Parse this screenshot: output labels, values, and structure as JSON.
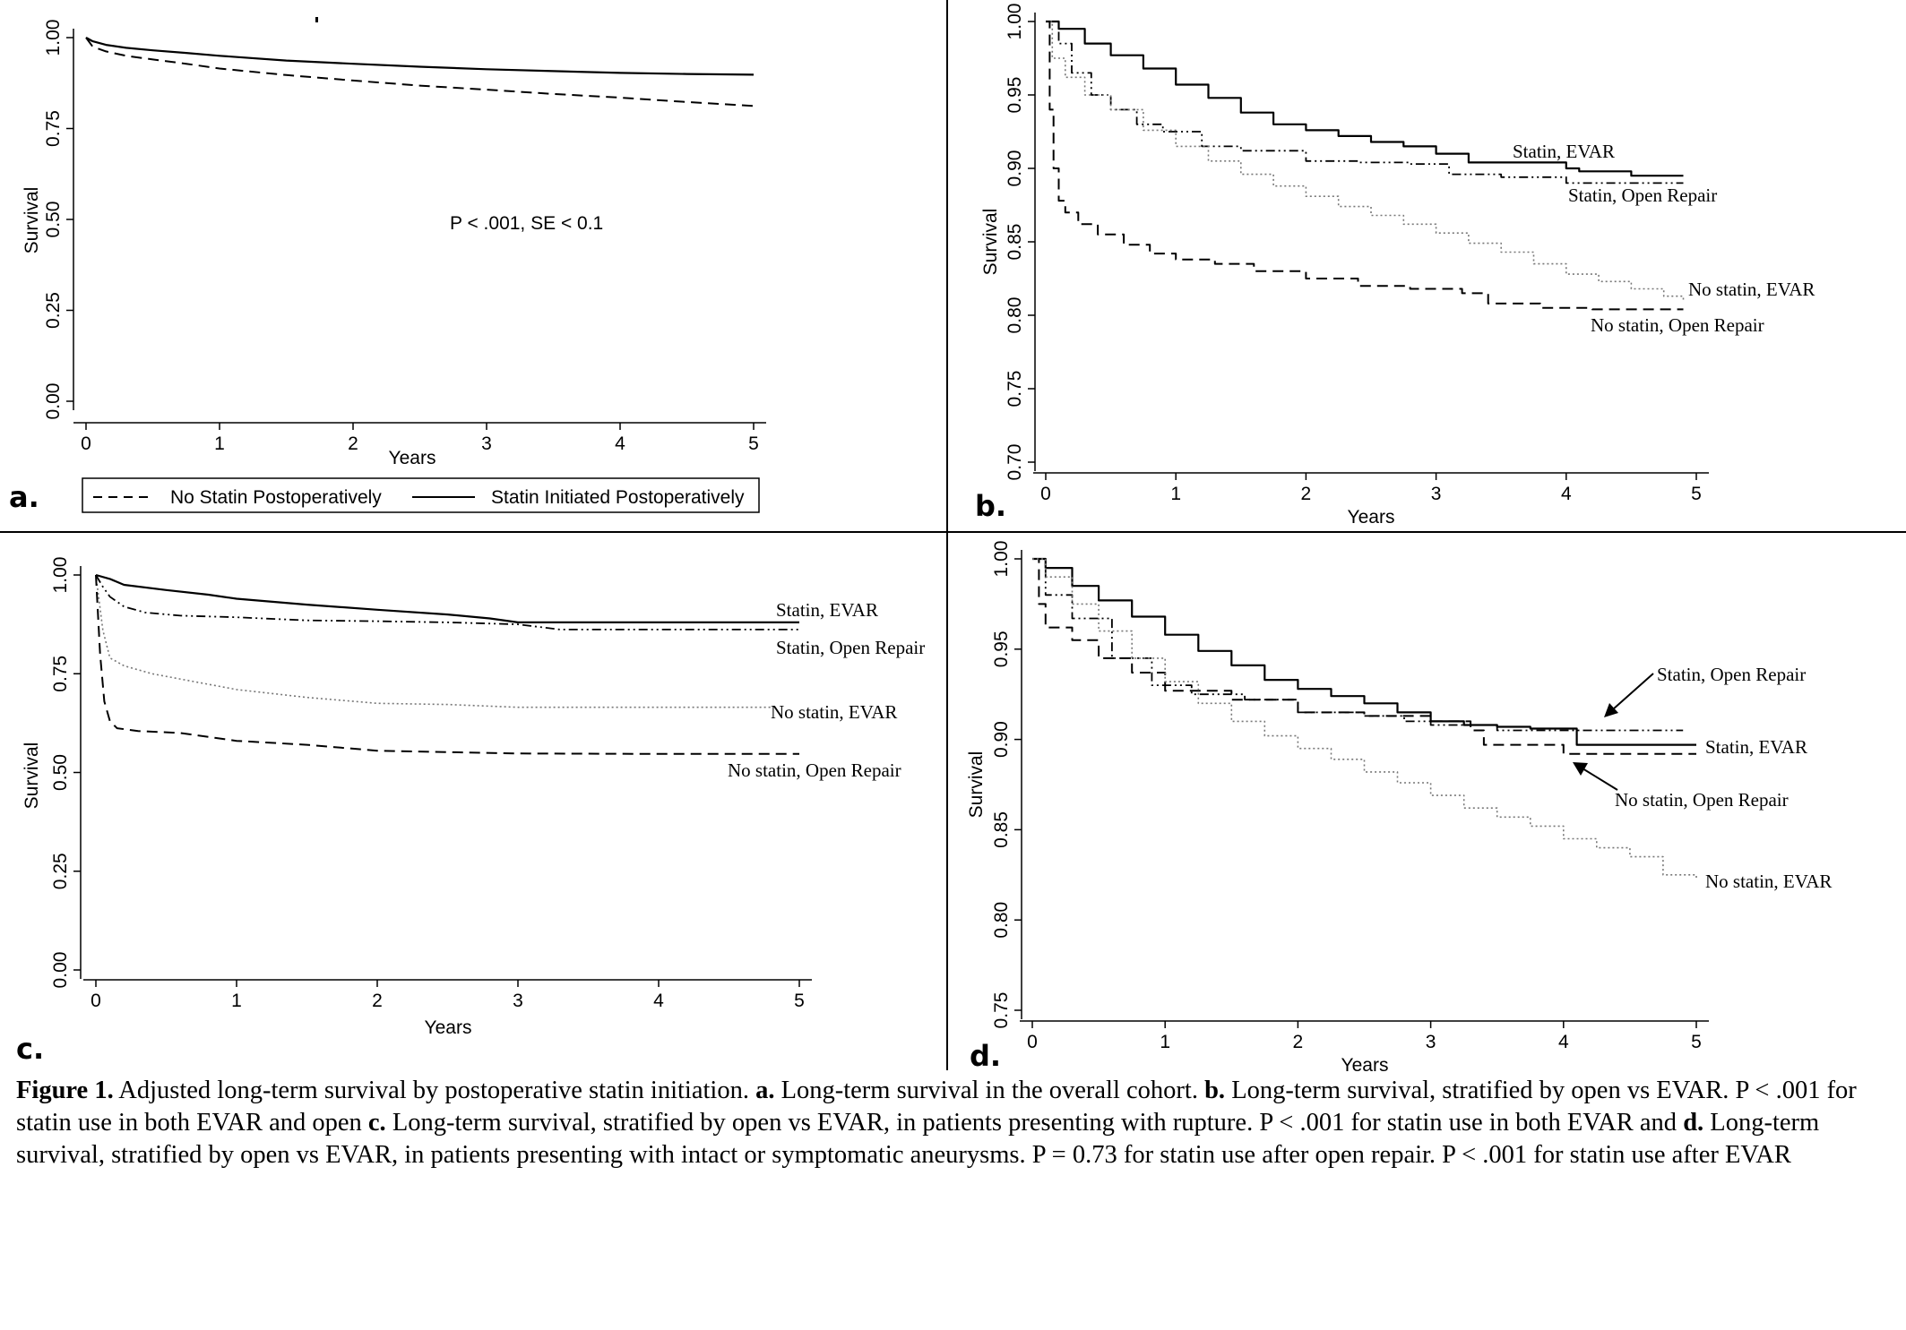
{
  "panels": [
    {
      "letter": "a.",
      "ylabel": "Survival",
      "xlabel": "Years",
      "annotation": "P < .001, SE < 0.1",
      "y_tick_labels": [
        "0.00",
        "0.25",
        "0.50",
        "0.75",
        "1.00"
      ],
      "x_tick_labels": [
        "0",
        "1",
        "2",
        "3",
        "4",
        "5"
      ],
      "legend": [
        "No Statin Postoperatively",
        "Statin Initiated Postoperatively"
      ]
    },
    {
      "letter": "b.",
      "ylabel": "Survival",
      "xlabel": "Years",
      "y_tick_labels": [
        "0.70",
        "0.75",
        "0.80",
        "0.85",
        "0.90",
        "0.95",
        "1.00"
      ],
      "x_tick_labels": [
        "0",
        "1",
        "2",
        "3",
        "4",
        "5"
      ],
      "curve_labels": [
        "Statin, EVAR",
        "Statin, Open Repair",
        "No statin, EVAR",
        "No statin, Open Repair"
      ]
    },
    {
      "letter": "c.",
      "ylabel": "Survival",
      "xlabel": "Years",
      "y_tick_labels": [
        "0.00",
        "0.25",
        "0.50",
        "0.75",
        "1.00"
      ],
      "x_tick_labels": [
        "0",
        "1",
        "2",
        "3",
        "4",
        "5"
      ],
      "curve_labels": [
        "Statin, EVAR",
        "Statin, Open Repair",
        "No statin, EVAR",
        "No statin, Open Repair"
      ]
    },
    {
      "letter": "d.",
      "ylabel": "Survival",
      "xlabel": "Years",
      "y_tick_labels": [
        "0.75",
        "0.80",
        "0.85",
        "0.90",
        "0.95",
        "1.00"
      ],
      "x_tick_labels": [
        "0",
        "1",
        "2",
        "3",
        "4",
        "5"
      ],
      "curve_labels": [
        "Statin, Open Repair",
        "Statin, EVAR",
        "No statin, Open Repair",
        "No statin, EVAR"
      ]
    }
  ],
  "caption": {
    "fig_label": "Figure 1.",
    "intro": " Adjusted long-term survival by postoperative statin initiation. ",
    "a_label": "a.",
    "a_text": " Long-term survival in the overall cohort. ",
    "b_label": "b.",
    "b_text": " Long-term survival, stratified by open vs EVAR. P < .001 for statin use in both EVAR and open ",
    "c_label": "c.",
    "c_text": " Long-term survival, stratified by open vs EVAR, in patients presenting with rupture. P < .001 for statin use in both EVAR and ",
    "d_label": "d.",
    "d_text": " Long-term survival, stratified by open vs EVAR, in patients presenting with intact or symptomatic aneurysms. P = 0.73 for statin use after open repair. P < .001 for statin use after EVAR"
  },
  "chart_data": [
    {
      "type": "line",
      "xlabel": "Years",
      "ylabel": "Survival",
      "xlim": [
        0,
        5
      ],
      "ylim": [
        0,
        1
      ],
      "legend_position": "bottom",
      "series": [
        {
          "name": "No Statin Postoperatively",
          "style": "dashed",
          "x": [
            0,
            0.05,
            0.15,
            0.3,
            0.5,
            0.75,
            1,
            1.5,
            2,
            2.5,
            3,
            3.5,
            4,
            4.5,
            5
          ],
          "y": [
            1.0,
            0.975,
            0.962,
            0.95,
            0.94,
            0.928,
            0.915,
            0.897,
            0.882,
            0.868,
            0.857,
            0.845,
            0.835,
            0.823,
            0.812
          ]
        },
        {
          "name": "Statin Initiated Postoperatively",
          "style": "solid",
          "x": [
            0,
            0.05,
            0.15,
            0.3,
            0.5,
            0.75,
            1,
            1.5,
            2,
            2.5,
            3,
            3.5,
            4,
            4.5,
            5
          ],
          "y": [
            1.0,
            0.99,
            0.98,
            0.972,
            0.965,
            0.958,
            0.95,
            0.937,
            0.928,
            0.92,
            0.913,
            0.908,
            0.903,
            0.9,
            0.898
          ]
        }
      ]
    },
    {
      "type": "line",
      "xlabel": "Years",
      "ylabel": "Survival",
      "xlim": [
        0,
        5
      ],
      "ylim": [
        0.7,
        1.0
      ],
      "series": [
        {
          "name": "Statin, EVAR",
          "style": "solid",
          "x": [
            0,
            0.1,
            0.3,
            0.5,
            0.75,
            1,
            1.25,
            1.5,
            1.75,
            2,
            2.25,
            2.5,
            2.75,
            3,
            3.25,
            3.5,
            3.75,
            4,
            4.1,
            4.5,
            4.9
          ],
          "y": [
            1.0,
            0.995,
            0.985,
            0.977,
            0.968,
            0.957,
            0.948,
            0.938,
            0.93,
            0.926,
            0.922,
            0.918,
            0.915,
            0.91,
            0.904,
            0.904,
            0.904,
            0.9,
            0.898,
            0.895,
            0.895
          ]
        },
        {
          "name": "Statin, Open Repair",
          "style": "dash-dot",
          "x": [
            0,
            0.1,
            0.2,
            0.35,
            0.5,
            0.7,
            0.9,
            1.2,
            1.5,
            2.0,
            2.4,
            2.8,
            3.1,
            3.5,
            4.0,
            4.5,
            4.9
          ],
          "y": [
            1.0,
            0.985,
            0.965,
            0.95,
            0.94,
            0.93,
            0.925,
            0.915,
            0.912,
            0.905,
            0.904,
            0.903,
            0.896,
            0.894,
            0.89,
            0.89,
            0.89
          ]
        },
        {
          "name": "No statin, EVAR",
          "style": "dotted",
          "x": [
            0,
            0.05,
            0.15,
            0.3,
            0.5,
            0.75,
            1,
            1.25,
            1.5,
            1.75,
            2,
            2.25,
            2.5,
            2.75,
            3,
            3.25,
            3.5,
            3.75,
            4,
            4.25,
            4.5,
            4.75,
            4.9
          ],
          "y": [
            1.0,
            0.975,
            0.962,
            0.95,
            0.94,
            0.926,
            0.915,
            0.905,
            0.896,
            0.888,
            0.881,
            0.874,
            0.868,
            0.862,
            0.856,
            0.849,
            0.843,
            0.835,
            0.828,
            0.823,
            0.818,
            0.813,
            0.81
          ]
        },
        {
          "name": "No statin, Open Repair",
          "style": "dashed",
          "x": [
            0,
            0.03,
            0.06,
            0.1,
            0.15,
            0.25,
            0.4,
            0.6,
            0.8,
            1.0,
            1.3,
            1.6,
            2.0,
            2.4,
            2.8,
            3.2,
            3.4,
            3.8,
            4.2,
            4.6,
            4.9
          ],
          "y": [
            1.0,
            0.94,
            0.9,
            0.878,
            0.87,
            0.862,
            0.855,
            0.848,
            0.842,
            0.838,
            0.835,
            0.83,
            0.825,
            0.82,
            0.818,
            0.815,
            0.808,
            0.805,
            0.804,
            0.804,
            0.804
          ]
        }
      ]
    },
    {
      "type": "line",
      "xlabel": "Years",
      "ylabel": "Survival",
      "xlim": [
        0,
        5
      ],
      "ylim": [
        0,
        1
      ],
      "series": [
        {
          "name": "Statin, EVAR",
          "style": "solid",
          "x": [
            0,
            0.1,
            0.2,
            0.5,
            0.8,
            1.0,
            1.5,
            2.0,
            2.5,
            2.8,
            3.0,
            4.0,
            5.0
          ],
          "y": [
            1.0,
            0.99,
            0.975,
            0.962,
            0.95,
            0.94,
            0.925,
            0.912,
            0.9,
            0.89,
            0.88,
            0.88,
            0.88
          ]
        },
        {
          "name": "Statin, Open Repair",
          "style": "dash-dot",
          "x": [
            0,
            0.05,
            0.1,
            0.2,
            0.35,
            0.6,
            1.0,
            1.5,
            2.0,
            2.5,
            3.0,
            3.3,
            4.0,
            5.0
          ],
          "y": [
            1.0,
            0.97,
            0.945,
            0.92,
            0.905,
            0.897,
            0.893,
            0.885,
            0.883,
            0.88,
            0.875,
            0.862,
            0.862,
            0.862
          ]
        },
        {
          "name": "No statin, EVAR",
          "style": "dotted",
          "x": [
            0,
            0.05,
            0.1,
            0.2,
            0.4,
            0.7,
            1.0,
            1.5,
            2.0,
            2.5,
            3.0,
            4.0,
            4.8
          ],
          "y": [
            1.0,
            0.86,
            0.79,
            0.77,
            0.75,
            0.73,
            0.71,
            0.69,
            0.675,
            0.672,
            0.665,
            0.665,
            0.665
          ]
        },
        {
          "name": "No statin, Open Repair",
          "style": "dashed",
          "x": [
            0,
            0.03,
            0.06,
            0.1,
            0.15,
            0.3,
            0.6,
            1.0,
            1.5,
            2.0,
            3.0,
            4.0,
            5.0
          ],
          "y": [
            1.0,
            0.8,
            0.68,
            0.63,
            0.612,
            0.605,
            0.6,
            0.58,
            0.57,
            0.555,
            0.548,
            0.547,
            0.547
          ]
        }
      ]
    },
    {
      "type": "line",
      "xlabel": "Years",
      "ylabel": "Survival",
      "xlim": [
        0,
        5
      ],
      "ylim": [
        0.75,
        1.0
      ],
      "series": [
        {
          "name": "Statin, EVAR",
          "style": "solid",
          "x": [
            0,
            0.1,
            0.3,
            0.5,
            0.75,
            1,
            1.25,
            1.5,
            1.75,
            2,
            2.25,
            2.5,
            2.75,
            3,
            3.25,
            3.5,
            3.75,
            4,
            4.1,
            4.5,
            5
          ],
          "y": [
            1.0,
            0.995,
            0.985,
            0.977,
            0.968,
            0.958,
            0.949,
            0.941,
            0.933,
            0.928,
            0.924,
            0.92,
            0.915,
            0.91,
            0.908,
            0.907,
            0.906,
            0.906,
            0.897,
            0.897,
            0.897
          ]
        },
        {
          "name": "Statin, Open Repair",
          "style": "dash-dot",
          "x": [
            0,
            0.1,
            0.3,
            0.6,
            0.9,
            1.2,
            1.6,
            2.0,
            2.5,
            2.8,
            3.0,
            3.5,
            4.0,
            4.5,
            4.9
          ],
          "y": [
            1.0,
            0.98,
            0.967,
            0.945,
            0.93,
            0.925,
            0.922,
            0.915,
            0.913,
            0.91,
            0.908,
            0.905,
            0.905,
            0.905,
            0.905
          ]
        },
        {
          "name": "No statin, Open Repair",
          "style": "dashed",
          "x": [
            0,
            0.05,
            0.1,
            0.3,
            0.5,
            0.75,
            1,
            1.5,
            2,
            2.5,
            3,
            3.3,
            3.4,
            4,
            4.5,
            5
          ],
          "y": [
            1.0,
            0.975,
            0.962,
            0.955,
            0.945,
            0.937,
            0.927,
            0.922,
            0.915,
            0.913,
            0.91,
            0.905,
            0.897,
            0.892,
            0.892,
            0.892
          ]
        },
        {
          "name": "No statin, EVAR",
          "style": "dotted",
          "x": [
            0,
            0.1,
            0.3,
            0.5,
            0.75,
            1,
            1.25,
            1.5,
            1.75,
            2,
            2.25,
            2.5,
            2.75,
            3,
            3.25,
            3.5,
            3.75,
            4,
            4.25,
            4.5,
            4.75,
            5
          ],
          "y": [
            1.0,
            0.99,
            0.975,
            0.96,
            0.945,
            0.932,
            0.92,
            0.91,
            0.902,
            0.895,
            0.889,
            0.882,
            0.876,
            0.869,
            0.862,
            0.857,
            0.852,
            0.845,
            0.84,
            0.835,
            0.825,
            0.822
          ]
        }
      ]
    }
  ]
}
